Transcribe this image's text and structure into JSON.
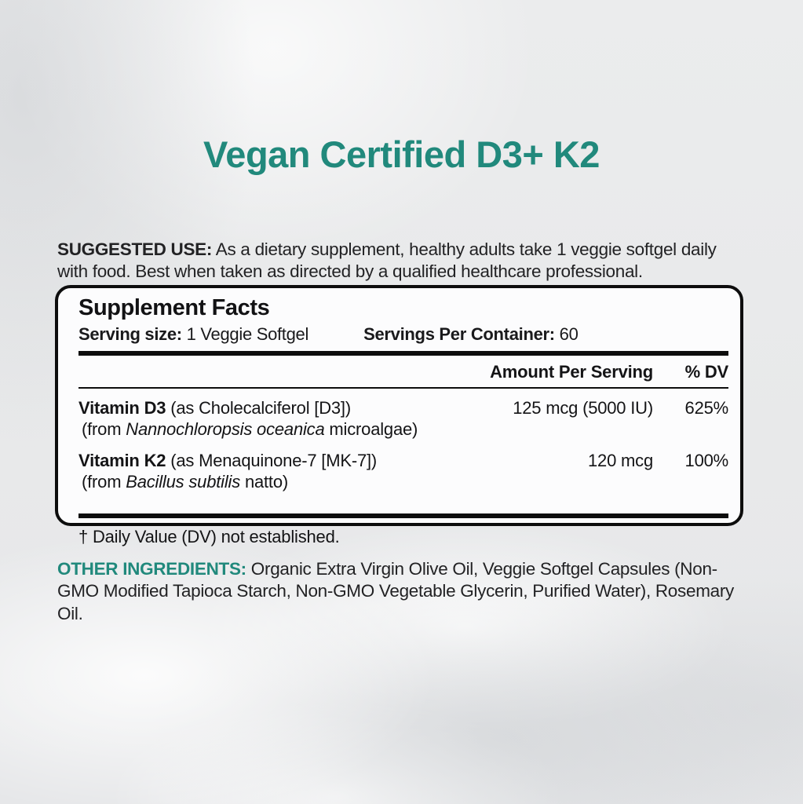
{
  "page": {
    "title": "Vegan Certified D3+ K2"
  },
  "colors": {
    "accent_teal": "#21897c",
    "text_dark": "#1c1c1e",
    "rule_black": "#0d0d0d",
    "background": "#e9eaeb",
    "box_background": "#fcfcfd"
  },
  "suggested_use": {
    "label": "SUGGESTED USE:",
    "text": " As a dietary supplement, healthy adults take 1 veggie softgel daily with food. Best when taken as directed by a qualified healthcare professional."
  },
  "supplement_facts": {
    "heading": "Supplement Facts",
    "serving_size_label": "Serving size:",
    "serving_size_value": " 1 Veggie Softgel",
    "servings_per_container_label": "Servings Per Container:",
    "servings_per_container_value": " 60",
    "columns": {
      "amount": "Amount Per Serving",
      "dv": "% DV"
    },
    "rows": [
      {
        "name_bold": "Vitamin D3",
        "name_rest": " (as Cholecalciferol [D3])",
        "sub_prefix": "(from ",
        "sub_italic": "Nannochloropsis oceanica",
        "sub_suffix": " microalgae)",
        "amount": "125 mcg (5000 IU)",
        "dv": "625%"
      },
      {
        "name_bold": "Vitamin K2",
        "name_rest": " (as Menaquinone-7 [MK-7])",
        "sub_prefix": "(from ",
        "sub_italic": "Bacillus subtilis",
        "sub_suffix": " natto)",
        "amount": "120 mcg",
        "dv": "100%"
      }
    ],
    "footnote": "† Daily Value (DV) not established."
  },
  "other_ingredients": {
    "label": "OTHER INGREDIENTS:",
    "text": " Organic Extra Virgin Olive Oil, Veggie Softgel Capsules (Non-GMO Modified Tapioca Starch, Non-GMO Vegetable Glycerin, Purified Water), Rosemary Oil."
  }
}
